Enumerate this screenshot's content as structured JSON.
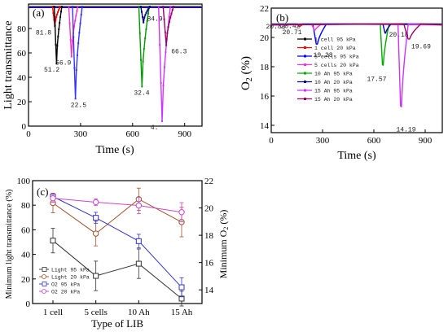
{
  "chart_data": [
    {
      "type": "line",
      "panel_label": "(a)",
      "xlabel": "Time (s)",
      "ylabel": "Light transmittance",
      "xlim": [
        0,
        1000
      ],
      "ylim": [
        0,
        100
      ],
      "xticks": [
        0,
        300,
        600,
        900
      ],
      "yticks": [
        0,
        20,
        40,
        60,
        80
      ],
      "baseline": 98,
      "dips": [
        {
          "x": 145,
          "min": 81.8,
          "width": 22,
          "color": "#ff0000",
          "label": "81.8"
        },
        {
          "x": 155,
          "min": 51.2,
          "width": 22,
          "color": "#000000",
          "label": "51.2"
        },
        {
          "x": 240,
          "min": 56.9,
          "width": 26,
          "color": "#ff33cc",
          "label": "56.9"
        },
        {
          "x": 262,
          "min": 22.5,
          "width": 28,
          "color": "#3333ff",
          "label": "22.5"
        },
        {
          "x": 645,
          "min": 32.4,
          "width": 30,
          "color": "#009900",
          "label": "32.4"
        },
        {
          "x": 655,
          "min": 84.9,
          "width": 26,
          "color": "#000080",
          "label": "84.9"
        },
        {
          "x": 760,
          "min": 4.0,
          "width": 34,
          "color": "#cc33ff",
          "label": "4."
        },
        {
          "x": 785,
          "min": 66.3,
          "width": 30,
          "color": "#990066",
          "label": "66.3"
        }
      ]
    },
    {
      "type": "line",
      "panel_label": "(b)",
      "xlabel": "Time (s)",
      "ylabel": "O2 (%)",
      "xlim": [
        0,
        1000
      ],
      "ylim": [
        13.5,
        22
      ],
      "xticks": [
        0,
        300,
        600,
        900
      ],
      "yticks": [
        14,
        16,
        18,
        20,
        22
      ],
      "baseline": 20.92,
      "series": [
        {
          "name": "1 cell 95 kPa",
          "color": "#000000",
          "dip_x": 150,
          "min": 20.83,
          "label": "20.83",
          "width": 20
        },
        {
          "name": "1 cell 20 kPa",
          "color": "#ff0000",
          "dip_x": 160,
          "min": 20.71,
          "label": "20.71",
          "width": 20
        },
        {
          "name": "5 cells 95 kPa",
          "color": "#0000ff",
          "dip_x": 255,
          "min": 19.28,
          "label": "19.28",
          "width": 40
        },
        {
          "name": "5 cells 20 kPa",
          "color": "#ff33cc",
          "dip_x": 245,
          "min": 20.42,
          "label": "20.42",
          "width": 30
        },
        {
          "name": "10 Ah 95 kPa",
          "color": "#00aa00",
          "dip_x": 645,
          "min": 17.57,
          "label": "17.57",
          "width": 26
        },
        {
          "name": "10 Ah 20 kPa",
          "color": "#000099",
          "dip_x": 660,
          "min": 20.18,
          "label": "20.18",
          "width": 24
        },
        {
          "name": "15 Ah 95 kPa",
          "color": "#cc33ff",
          "dip_x": 750,
          "min": 14.19,
          "label": "14.19",
          "width": 30
        },
        {
          "name": "15 Ah 20 kPa",
          "color": "#990066",
          "dip_x": 790,
          "min": 19.69,
          "label": "19.69",
          "width": 50
        }
      ]
    },
    {
      "type": "line",
      "panel_label": "(c)",
      "xlabel": "Type of LIB",
      "ylabel": "Minimum light transmittance (%)",
      "y2label": "Minimum O2 (%)",
      "categories": [
        "1 cell",
        "5 cells",
        "10 Ah",
        "15 Ah"
      ],
      "ylim": [
        0,
        100
      ],
      "yticks": [
        0,
        20,
        40,
        60,
        80,
        100
      ],
      "y2lim": [
        13,
        22
      ],
      "y2ticks": [
        14,
        16,
        18,
        20,
        22
      ],
      "series": [
        {
          "name": "Light 95 kPa",
          "axis": "left",
          "color": "#333333",
          "marker": "square",
          "values": [
            51.2,
            22.5,
            32.4,
            4.0
          ],
          "err": [
            10,
            12,
            12,
            6
          ]
        },
        {
          "name": "Light 20 kPa",
          "axis": "left",
          "color": "#a0522d",
          "marker": "circle",
          "values": [
            81.8,
            56.9,
            84.9,
            66.3
          ],
          "err": [
            8,
            10,
            9,
            12
          ]
        },
        {
          "name": "O2 95 kPa",
          "axis": "right",
          "color": "#3333cc",
          "marker": "square",
          "values": [
            20.83,
            19.28,
            17.57,
            14.19
          ],
          "err": [
            0.2,
            0.4,
            0.5,
            0.7
          ]
        },
        {
          "name": "O2 20 kPa",
          "axis": "right",
          "color": "#cc44cc",
          "marker": "circle",
          "values": [
            20.71,
            20.42,
            20.18,
            19.69
          ],
          "err": [
            0.3,
            0.25,
            0.6,
            0.7
          ]
        }
      ]
    }
  ]
}
